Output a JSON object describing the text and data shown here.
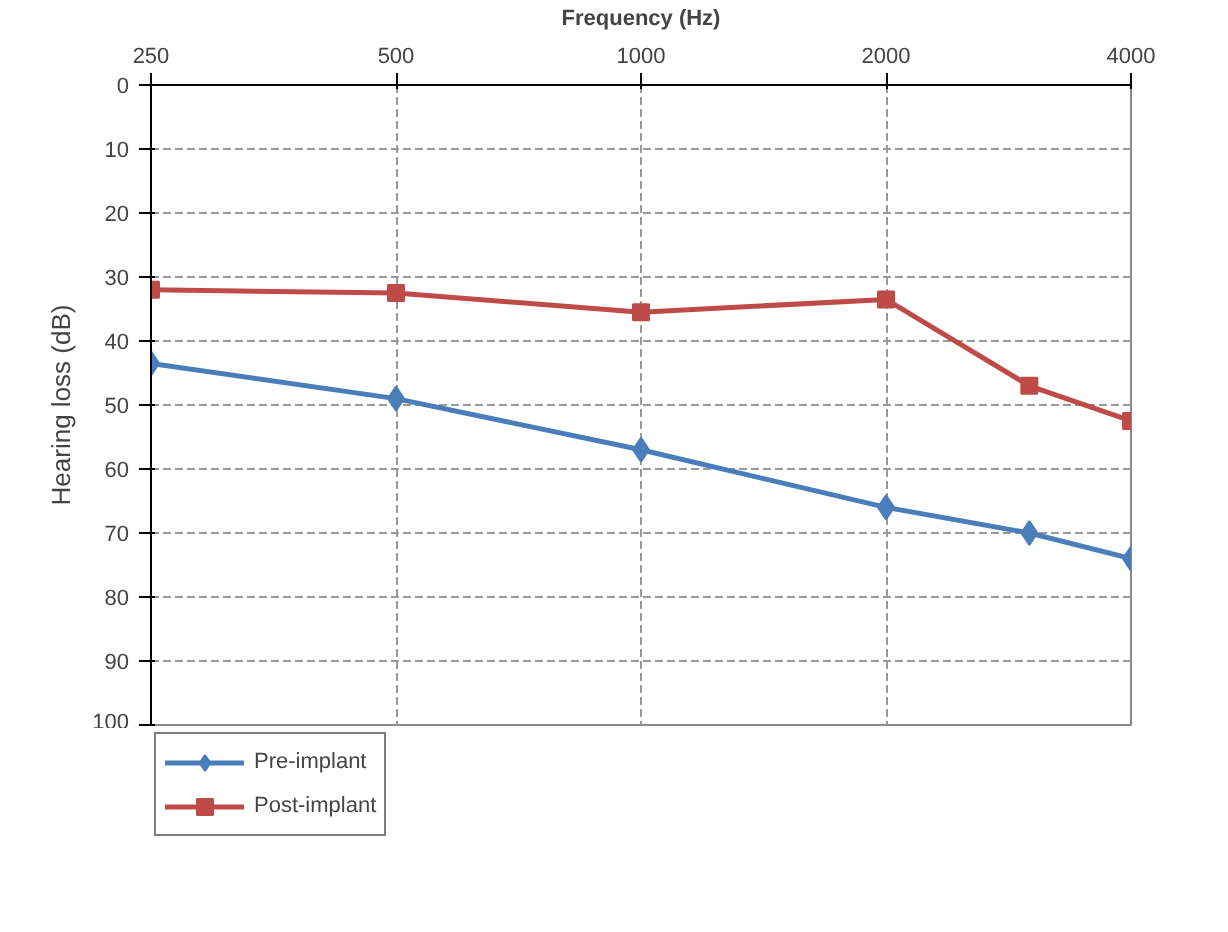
{
  "chart_data": {
    "type": "line",
    "xlabel": "Frequency (Hz)",
    "ylabel": "Hearing loss (dB)",
    "log": "x",
    "xlim": [
      250,
      4000
    ],
    "xticks": [
      250,
      500,
      1000,
      2000,
      4000
    ],
    "ylim": [
      100,
      0
    ],
    "yticks": [
      0,
      10,
      20,
      30,
      40,
      50,
      60,
      70,
      80,
      90,
      100
    ],
    "grid": true,
    "legend": "bottom left",
    "line_style": "solid",
    "x": [
      250,
      500,
      1000,
      2000,
      3000,
      4000
    ],
    "series": [
      {
        "name": "Pre-implant",
        "color": "#4a7ebb",
        "marker": "diamond",
        "values": [
          43.5,
          49,
          57,
          66,
          70,
          74
        ]
      },
      {
        "name": "Post-implant",
        "color": "#be4b48",
        "marker": "square",
        "values": [
          32,
          32.5,
          35.5,
          33.5,
          47,
          52.5
        ]
      }
    ]
  }
}
